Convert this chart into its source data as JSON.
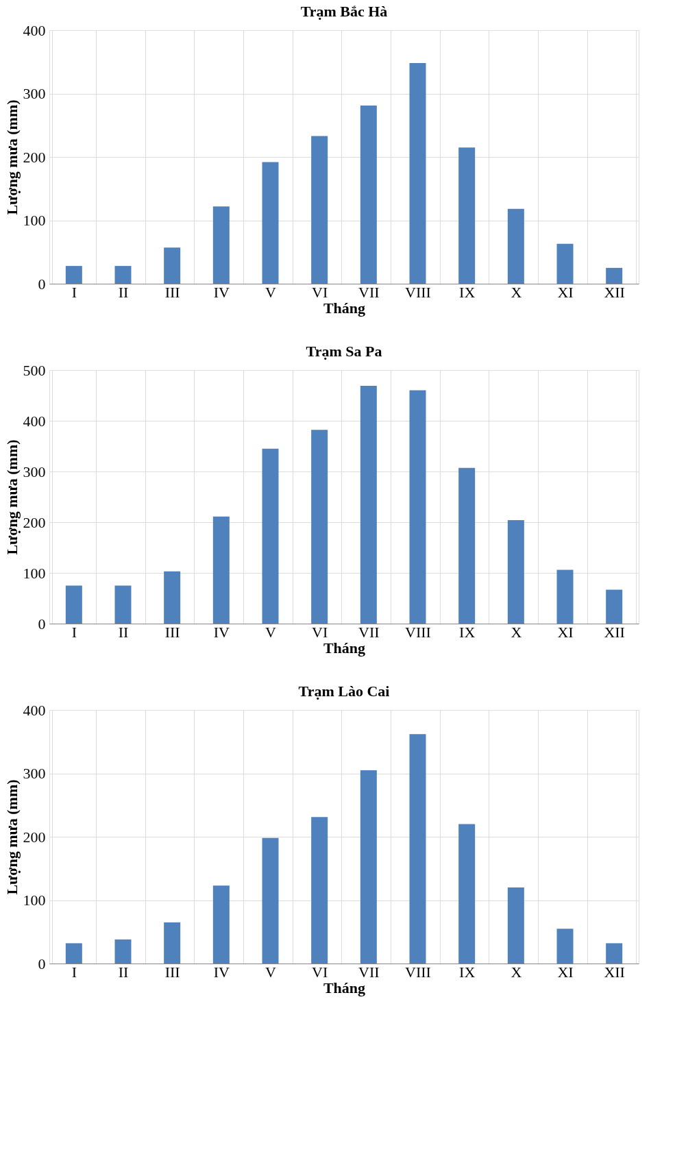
{
  "chart_data": [
    {
      "type": "bar",
      "title": "Trạm Bắc Hà",
      "xlabel": "Tháng",
      "ylabel": "Lượng mưa (mm)",
      "categories": [
        "I",
        "II",
        "III",
        "IV",
        "V",
        "VI",
        "VII",
        "VIII",
        "IX",
        "X",
        "XI",
        "XII"
      ],
      "color": "#4f81bd",
      "values": [
        28,
        28,
        57,
        122,
        192,
        233,
        281,
        348,
        215,
        118,
        63,
        25
      ],
      "ylim": [
        0,
        400
      ],
      "yticks": [
        0,
        100,
        200,
        300,
        400
      ],
      "grid": true
    },
    {
      "type": "bar",
      "title": "Trạm Sa Pa",
      "xlabel": "Tháng",
      "ylabel": "Lượng mưa (mm)",
      "categories": [
        "I",
        "II",
        "III",
        "IV",
        "V",
        "VI",
        "VII",
        "VIII",
        "IX",
        "X",
        "XI",
        "XII"
      ],
      "color": "#4f81bd",
      "values": [
        75,
        75,
        103,
        211,
        345,
        382,
        469,
        460,
        307,
        204,
        106,
        67
      ],
      "ylim": [
        0,
        500
      ],
      "yticks": [
        0,
        100,
        200,
        300,
        400,
        500
      ],
      "grid": true
    },
    {
      "type": "bar",
      "title": "Trạm Lào Cai",
      "xlabel": "Tháng",
      "ylabel": "Lượng mưa (mm)",
      "categories": [
        "I",
        "II",
        "III",
        "IV",
        "V",
        "VI",
        "VII",
        "VIII",
        "IX",
        "X",
        "XI",
        "XII"
      ],
      "color": "#4f81bd",
      "values": [
        32,
        38,
        65,
        123,
        198,
        231,
        305,
        362,
        220,
        120,
        55,
        32
      ],
      "ylim": [
        0,
        400
      ],
      "yticks": [
        0,
        100,
        200,
        300,
        400
      ],
      "grid": true
    }
  ]
}
